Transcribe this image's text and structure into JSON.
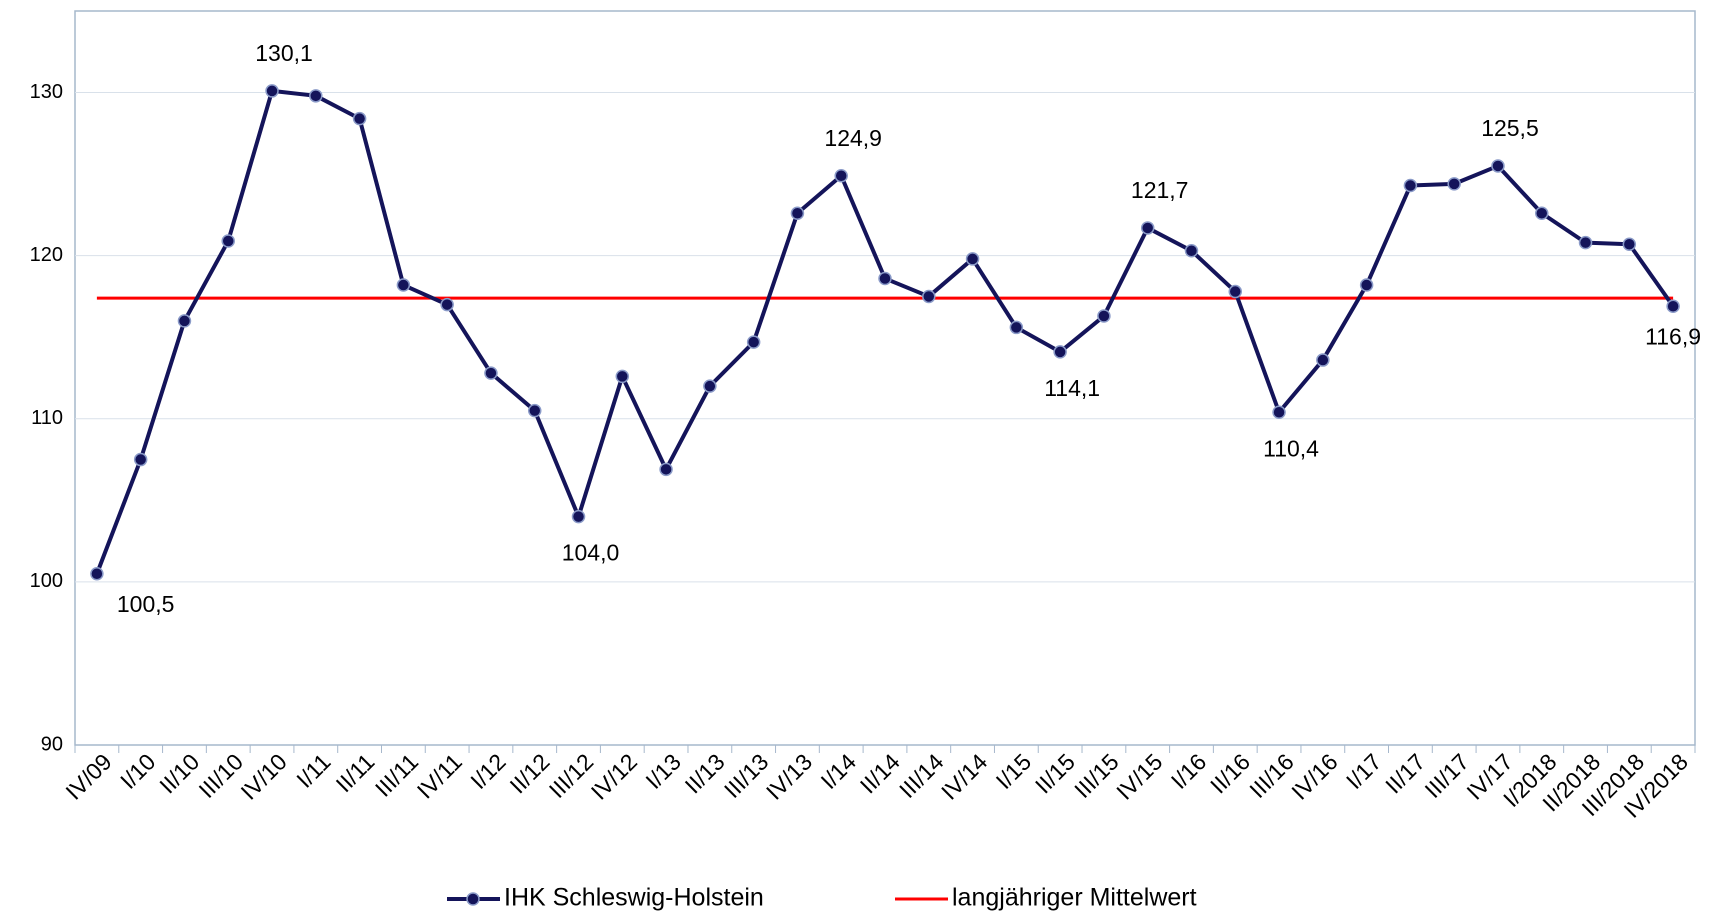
{
  "chart_data": {
    "type": "line",
    "categories": [
      "IV/09",
      "I/10",
      "II/10",
      "III/10",
      "IV/10",
      "I/11",
      "II/11",
      "III/11",
      "IV/11",
      "I/12",
      "II/12",
      "III/12",
      "IV/12",
      "I/13",
      "II/13",
      "III/13",
      "IV/13",
      "I/14",
      "II/14",
      "III/14",
      "IV/14",
      "I/15",
      "II/15",
      "III/15",
      "IV/15",
      "I/16",
      "II/16",
      "III/16",
      "IV/16",
      "I/17",
      "II/17",
      "III/17",
      "IV/17",
      "I/2018",
      "II/2018",
      "III/2018",
      "IV/2018"
    ],
    "series": [
      {
        "name": "IHK Schleswig-Holstein",
        "color": "#14145a",
        "values": [
          100.5,
          107.5,
          116.0,
          120.9,
          130.1,
          129.8,
          128.4,
          118.2,
          117.0,
          112.8,
          110.5,
          104.0,
          112.6,
          106.9,
          112.0,
          114.7,
          122.6,
          124.9,
          118.6,
          117.5,
          119.8,
          115.6,
          114.1,
          116.3,
          121.7,
          120.3,
          117.8,
          110.4,
          113.6,
          118.2,
          124.3,
          124.4,
          125.5,
          122.6,
          120.8,
          120.7,
          116.9
        ],
        "value_labels": [
          "100,5",
          null,
          null,
          null,
          "130,1",
          null,
          null,
          null,
          null,
          null,
          null,
          "104,0",
          null,
          null,
          null,
          null,
          null,
          "124,9",
          null,
          null,
          null,
          null,
          "114,1",
          null,
          "121,7",
          null,
          null,
          "110,4",
          null,
          null,
          null,
          null,
          "125,5",
          null,
          null,
          null,
          "116,9"
        ]
      }
    ],
    "reference_line": {
      "name": "langjähriger Mittelwert",
      "color": "#ff0000",
      "value": 117.4
    },
    "ylim": [
      90,
      135
    ],
    "yticks": [
      90,
      100,
      110,
      120,
      130
    ],
    "grid": true
  }
}
